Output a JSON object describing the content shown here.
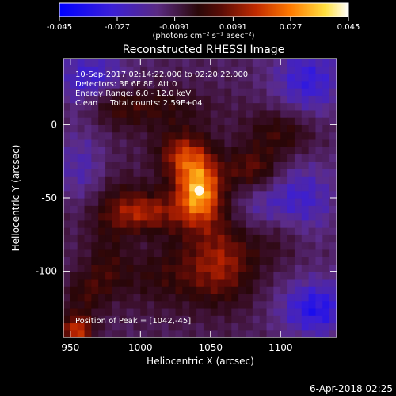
{
  "chart_data": {
    "type": "heatmap",
    "title": "Reconstructed RHESSI Image",
    "xlabel": "Heliocentric X (arcsec)",
    "ylabel": "Heliocentric Y (arcsec)",
    "xlim": [
      945,
      1140
    ],
    "ylim": [
      -145,
      45
    ],
    "xticks": [
      950,
      1000,
      1050,
      1100
    ],
    "yticks": [
      0,
      -50,
      -100
    ],
    "colorbar": {
      "min": -0.045,
      "max": 0.045,
      "ticks": [
        "-0.045",
        "-0.027",
        "-0.0091",
        "0.0091",
        "0.027",
        "0.045"
      ],
      "unit_label": "(photons cm⁻² s⁻¹ asec⁻²)",
      "colors": [
        "#1020ff",
        "#4030c8",
        "#5a2a80",
        "#300a10",
        "#8a1a08",
        "#e03a00",
        "#ff8a00",
        "#ffe040",
        "#ffffff"
      ]
    },
    "annotations": {
      "time_range": "10-Sep-2017 02:14:22.000 to 02:20:22.000",
      "detectors": "Detectors: 3F 6F 8F, Att 0",
      "energy": "Energy Range: 6.0 - 12.0 keV",
      "clean": "Clean     Total counts: 2.59E+04",
      "peak": "Position of Peak = [1042,-45]"
    },
    "peak": {
      "x": 1042,
      "y": -45,
      "value": 0.045
    },
    "features": [
      {
        "x": 1042,
        "y": -45,
        "sx": 12,
        "sy": 16,
        "value": 0.045
      },
      {
        "x": 1030,
        "y": -20,
        "sx": 14,
        "sy": 12,
        "value": 0.028
      },
      {
        "x": 1005,
        "y": -60,
        "sx": 22,
        "sy": 10,
        "value": 0.02
      },
      {
        "x": 990,
        "y": -55,
        "sx": 20,
        "sy": 30,
        "value": 0.016
      },
      {
        "x": 1080,
        "y": -30,
        "sx": 14,
        "sy": 10,
        "value": 0.022
      },
      {
        "x": 1100,
        "y": -5,
        "sx": 18,
        "sy": 12,
        "value": 0.018
      },
      {
        "x": 1060,
        "y": -90,
        "sx": 16,
        "sy": 22,
        "value": 0.02
      },
      {
        "x": 1030,
        "y": -100,
        "sx": 30,
        "sy": 18,
        "value": 0.016
      },
      {
        "x": 1010,
        "y": 12,
        "sx": 30,
        "sy": 10,
        "value": 0.014
      },
      {
        "x": 980,
        "y": 15,
        "sx": 14,
        "sy": 10,
        "value": 0.012
      },
      {
        "x": 1095,
        "y": -75,
        "sx": 14,
        "sy": 14,
        "value": 0.012
      },
      {
        "x": 960,
        "y": -115,
        "sx": 10,
        "sy": 10,
        "value": 0.014
      },
      {
        "x": 975,
        "y": -100,
        "sx": 10,
        "sy": 14,
        "value": 0.01
      },
      {
        "x": 955,
        "y": -140,
        "sx": 8,
        "sy": 8,
        "value": 0.035
      },
      {
        "x": 1000,
        "y": -30,
        "sx": 14,
        "sy": 14,
        "value": -0.008
      },
      {
        "x": 1085,
        "y": -60,
        "sx": 14,
        "sy": 14,
        "value": -0.012
      },
      {
        "x": 1000,
        "y": -80,
        "sx": 14,
        "sy": 12,
        "value": -0.01
      },
      {
        "x": 1120,
        "y": 30,
        "sx": 18,
        "sy": 18,
        "value": -0.02
      },
      {
        "x": 965,
        "y": 30,
        "sx": 18,
        "sy": 15,
        "value": -0.02
      },
      {
        "x": 1125,
        "y": -125,
        "sx": 18,
        "sy": 14,
        "value": -0.024
      },
      {
        "x": 1115,
        "y": -50,
        "sx": 18,
        "sy": 18,
        "value": -0.017
      },
      {
        "x": 960,
        "y": -30,
        "sx": 14,
        "sy": 18,
        "value": -0.015
      }
    ]
  },
  "footer": {
    "timestamp": "6-Apr-2018 02:25"
  }
}
